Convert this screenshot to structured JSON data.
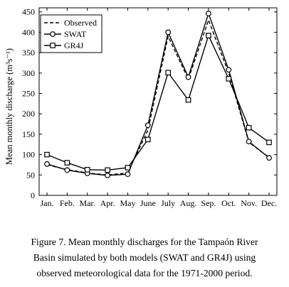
{
  "chart_data": {
    "type": "line",
    "title": "",
    "xlabel": "",
    "ylabel": "Mean monthly discharge (m³s⁻¹)",
    "ylim": [
      0,
      460
    ],
    "yticks": [
      0,
      50,
      100,
      150,
      200,
      250,
      300,
      350,
      400,
      450
    ],
    "categories": [
      "Jan.",
      "Feb.",
      "Mar.",
      "Apr.",
      "May",
      "June",
      "July",
      "Aug.",
      "Sep.",
      "Oct.",
      "Nov.",
      "Dec."
    ],
    "grid": false,
    "legend_position": "top-left",
    "series": [
      {
        "name": "Observed",
        "style": "dashed",
        "marker": "none",
        "values": [
          75,
          63,
          55,
          50,
          55,
          160,
          390,
          285,
          430,
          300,
          130,
          93
        ]
      },
      {
        "name": "SWAT",
        "style": "solid",
        "marker": "circle",
        "values": [
          77,
          62,
          54,
          49,
          52,
          172,
          400,
          290,
          446,
          308,
          132,
          92
        ]
      },
      {
        "name": "GR4J",
        "style": "solid",
        "marker": "square",
        "values": [
          100,
          80,
          63,
          62,
          68,
          137,
          301,
          234,
          392,
          286,
          166,
          130
        ]
      }
    ]
  },
  "caption": {
    "line1": "Figure 7. Mean monthly discharges for the Tampaón River",
    "line2": "Basin simulated by both models (SWAT and GR4J) using",
    "line3": "observed meteorological data for the 1971-2000 period."
  }
}
